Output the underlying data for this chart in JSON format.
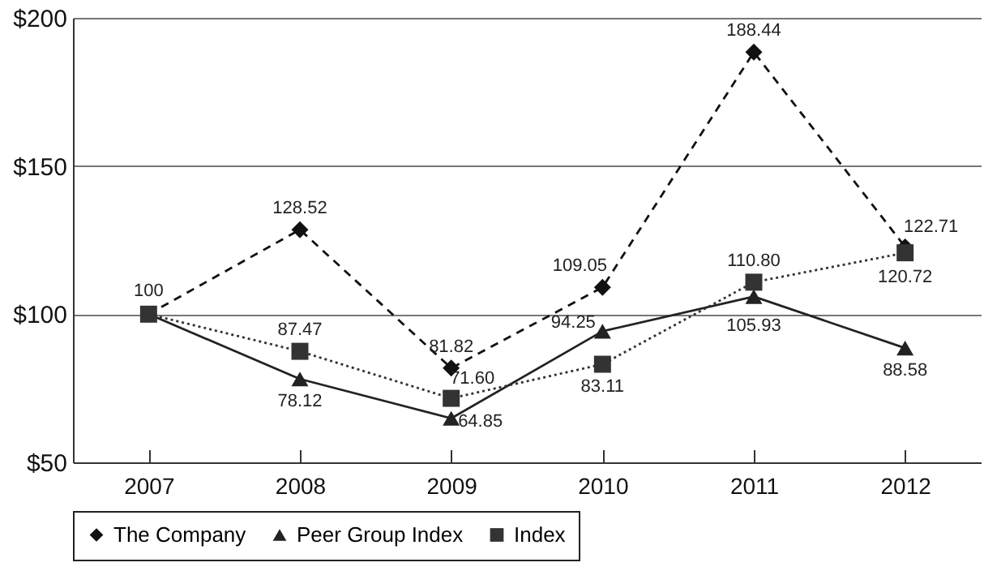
{
  "chart_data": {
    "type": "line",
    "categories": [
      "2007",
      "2008",
      "2009",
      "2010",
      "2011",
      "2012"
    ],
    "series": [
      {
        "name": "The Company",
        "color": "#111111",
        "marker": "diamond",
        "line_style": "dashed",
        "values": [
          100,
          128.52,
          81.82,
          109.05,
          188.44,
          122.71
        ],
        "value_labels": [
          "100",
          "128.52",
          "81.82",
          "109.05",
          "188.44",
          "122.71"
        ]
      },
      {
        "name": "Peer Group Index",
        "color": "#222222",
        "marker": "triangle",
        "line_style": "solid",
        "values": [
          100,
          78.12,
          64.85,
          94.25,
          105.93,
          88.58
        ],
        "value_labels": [
          null,
          "78.12",
          "64.85",
          "94.25",
          "105.93",
          "88.58"
        ]
      },
      {
        "name": "Index",
        "color": "#333333",
        "marker": "square",
        "line_style": "dotted",
        "values": [
          100,
          87.47,
          71.6,
          83.11,
          110.8,
          120.72
        ],
        "value_labels": [
          null,
          "87.47",
          "71.60",
          "83.11",
          "110.80",
          "120.72"
        ]
      }
    ],
    "ylim": [
      50,
      200
    ],
    "yticks": [
      {
        "value": 50,
        "label": "$50"
      },
      {
        "value": 100,
        "label": "$100"
      },
      {
        "value": 150,
        "label": "$150"
      },
      {
        "value": 200,
        "label": "$200"
      }
    ],
    "grid": "y",
    "legend": "bottom"
  }
}
